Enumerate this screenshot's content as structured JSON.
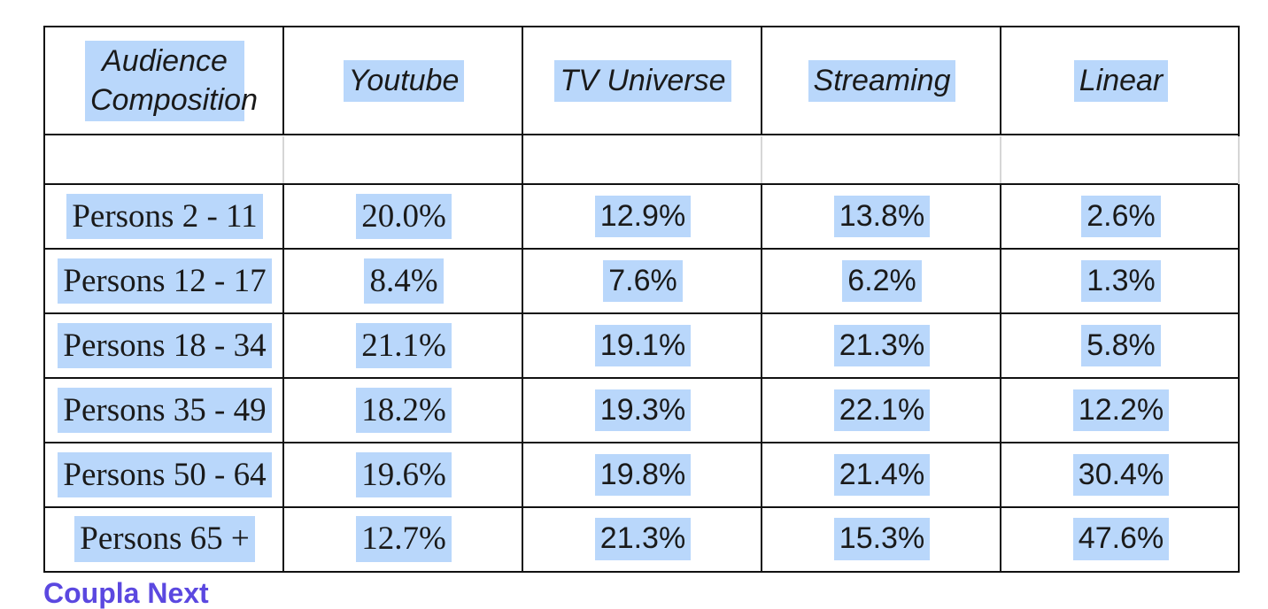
{
  "table": {
    "headers": [
      "Audience Composition",
      "Youtube",
      "TV Universe",
      "Streaming",
      "Linear"
    ],
    "rows": [
      {
        "label": "Persons 2 - 11",
        "values": [
          "20.0%",
          "12.9%",
          "13.8%",
          "2.6%"
        ]
      },
      {
        "label": "Persons 12 - 17",
        "values": [
          "8.4%",
          "7.6%",
          "6.2%",
          "1.3%"
        ]
      },
      {
        "label": "Persons 18 - 34",
        "values": [
          "21.1%",
          "19.1%",
          "21.3%",
          "5.8%"
        ]
      },
      {
        "label": "Persons 35 - 49",
        "values": [
          "18.2%",
          "19.3%",
          "22.1%",
          "12.2%"
        ]
      },
      {
        "label": "Persons 50 - 64",
        "values": [
          "19.6%",
          "19.8%",
          "21.4%",
          "30.4%"
        ]
      },
      {
        "label": "Persons 65 +",
        "values": [
          "12.7%",
          "21.3%",
          "15.3%",
          "47.6%"
        ]
      }
    ]
  },
  "colors": {
    "highlight": "#b9d7fb",
    "border": "#111111",
    "footer_link": "#5b48e0"
  },
  "footer": {
    "link_text": "Coupla Next"
  }
}
